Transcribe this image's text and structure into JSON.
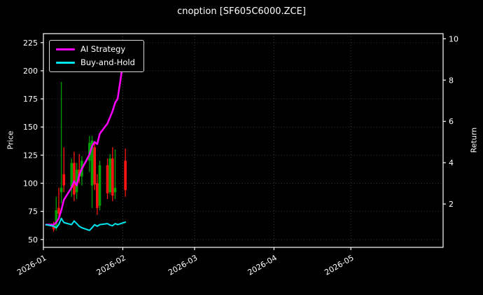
{
  "chart_data": {
    "type": "line",
    "subtype": "line-plus-candlestick-overlay",
    "title": "cnoption [SF605C6000.ZCE]",
    "ylabel_left": "Price",
    "ylabel_right": "Return",
    "x_ticks": [
      {
        "label": "2026-01",
        "date": "2026-01-01"
      },
      {
        "label": "2026-02",
        "date": "2026-02-01"
      },
      {
        "label": "2026-03",
        "date": "2026-03-01"
      },
      {
        "label": "2026-04",
        "date": "2026-04-01"
      },
      {
        "label": "2026-05",
        "date": "2026-05-01"
      }
    ],
    "x_start": "2026-01-01",
    "x_end": "2026-06-06",
    "price_axis": {
      "ticks": [
        50,
        75,
        100,
        125,
        150,
        175,
        200,
        225
      ],
      "lim": [
        43,
        233
      ]
    },
    "return_axis": {
      "ticks": [
        2,
        4,
        6,
        8,
        10
      ],
      "lim": [
        -0.1,
        10.25
      ]
    },
    "legend": {
      "position": "upper-left"
    },
    "colors": {
      "background": "#000000",
      "axis": "#ffffff",
      "grid": "#3a3a3a",
      "up": "#00a000",
      "down": "#ff1414",
      "ai": "#ff00ff",
      "bh": "#00e5ee"
    },
    "dates": [
      "2026-01-02",
      "2026-01-05",
      "2026-01-06",
      "2026-01-07",
      "2026-01-08",
      "2026-01-09",
      "2026-01-12",
      "2026-01-13",
      "2026-01-14",
      "2026-01-15",
      "2026-01-16",
      "2026-01-19",
      "2026-01-20",
      "2026-01-21",
      "2026-01-22",
      "2026-01-23",
      "2026-01-26",
      "2026-01-27",
      "2026-01-28",
      "2026-01-29",
      "2026-01-30",
      "2026-02-02"
    ],
    "series": [
      {
        "name": "AI Strategy",
        "color": "#ff00ff",
        "axis": "return",
        "values": [
          1.0,
          1.0,
          1.1,
          1.3,
          1.7,
          2.2,
          2.8,
          3.1,
          2.9,
          3.4,
          3.7,
          4.4,
          4.8,
          5.0,
          4.9,
          5.4,
          5.9,
          6.2,
          6.5,
          6.9,
          7.1,
          9.6
        ]
      },
      {
        "name": "Buy-and-Hold",
        "color": "#00e5ee",
        "axis": "return",
        "values": [
          1.0,
          0.92,
          0.85,
          1.0,
          1.3,
          1.1,
          1.0,
          1.18,
          1.05,
          0.92,
          0.85,
          0.72,
          0.85,
          1.0,
          0.92,
          1.0,
          1.05,
          0.98,
          0.95,
          1.05,
          1.0,
          1.12
        ]
      }
    ],
    "candles": [
      {
        "d": "2026-01-05",
        "o": 62,
        "h": 66,
        "l": 57,
        "c": 59
      },
      {
        "d": "2026-01-06",
        "o": 60,
        "h": 88,
        "l": 58,
        "c": 76
      },
      {
        "d": "2026-01-07",
        "o": 78,
        "h": 96,
        "l": 70,
        "c": 73
      },
      {
        "d": "2026-01-08",
        "o": 92,
        "h": 190,
        "l": 82,
        "c": 96
      },
      {
        "d": "2026-01-09",
        "o": 108,
        "h": 132,
        "l": 92,
        "c": 98
      },
      {
        "d": "2026-01-12",
        "o": 96,
        "h": 122,
        "l": 88,
        "c": 118
      },
      {
        "d": "2026-01-13",
        "o": 118,
        "h": 128,
        "l": 84,
        "c": 90
      },
      {
        "d": "2026-01-14",
        "o": 92,
        "h": 118,
        "l": 86,
        "c": 112
      },
      {
        "d": "2026-01-15",
        "o": 112,
        "h": 126,
        "l": 100,
        "c": 106
      },
      {
        "d": "2026-01-16",
        "o": 106,
        "h": 124,
        "l": 98,
        "c": 120
      },
      {
        "d": "2026-01-19",
        "o": 120,
        "h": 142,
        "l": 110,
        "c": 136
      },
      {
        "d": "2026-01-20",
        "o": 98,
        "h": 142,
        "l": 78,
        "c": 138
      },
      {
        "d": "2026-01-21",
        "o": 132,
        "h": 136,
        "l": 94,
        "c": 99
      },
      {
        "d": "2026-01-22",
        "o": 100,
        "h": 108,
        "l": 72,
        "c": 78
      },
      {
        "d": "2026-01-23",
        "o": 80,
        "h": 120,
        "l": 76,
        "c": 116
      },
      {
        "d": "2026-01-26",
        "o": 116,
        "h": 122,
        "l": 86,
        "c": 91
      },
      {
        "d": "2026-01-27",
        "o": 92,
        "h": 126,
        "l": 90,
        "c": 122
      },
      {
        "d": "2026-01-28",
        "o": 122,
        "h": 132,
        "l": 84,
        "c": 89
      },
      {
        "d": "2026-01-29",
        "o": 92,
        "h": 130,
        "l": 86,
        "c": 96
      },
      {
        "d": "2026-02-02",
        "o": 120,
        "h": 131,
        "l": 88,
        "c": 94
      }
    ]
  }
}
